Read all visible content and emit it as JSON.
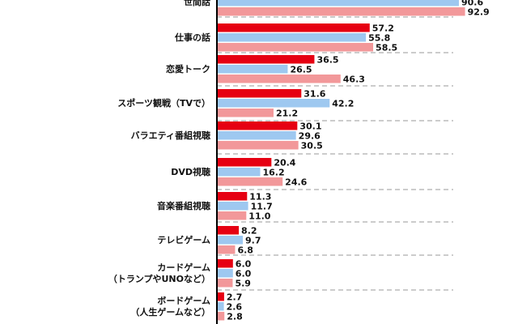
{
  "chart_data": {
    "type": "bar",
    "orientation": "horizontal",
    "categories": [
      [
        "世間話"
      ],
      [
        "仕事の話"
      ],
      [
        "恋愛トーク"
      ],
      [
        "スポーツ観戦（TVで）"
      ],
      [
        "バラエティ番組視聴"
      ],
      [
        "DVD視聴"
      ],
      [
        "音楽番組視聴"
      ],
      [
        "テレビゲーム"
      ],
      [
        "カードゲーム",
        "（トランプやUNOなど）"
      ],
      [
        "ボードゲーム",
        "（人生ゲームなど）"
      ]
    ],
    "series": [
      {
        "color": "#e60012",
        "values": [
          null,
          57.2,
          36.5,
          31.6,
          30.1,
          20.4,
          11.3,
          8.2,
          6.0,
          2.7
        ]
      },
      {
        "color": "#9ec8f0",
        "values": [
          90.6,
          55.8,
          26.5,
          42.2,
          29.6,
          16.2,
          11.7,
          9.7,
          6.0,
          2.6
        ]
      },
      {
        "color": "#f2989a",
        "values": [
          92.9,
          58.5,
          46.3,
          21.2,
          30.5,
          24.6,
          11.0,
          6.8,
          5.9,
          2.8
        ]
      }
    ],
    "xlim": [
      0,
      100
    ],
    "grid": false,
    "legend": "none",
    "value_labels": true
  }
}
